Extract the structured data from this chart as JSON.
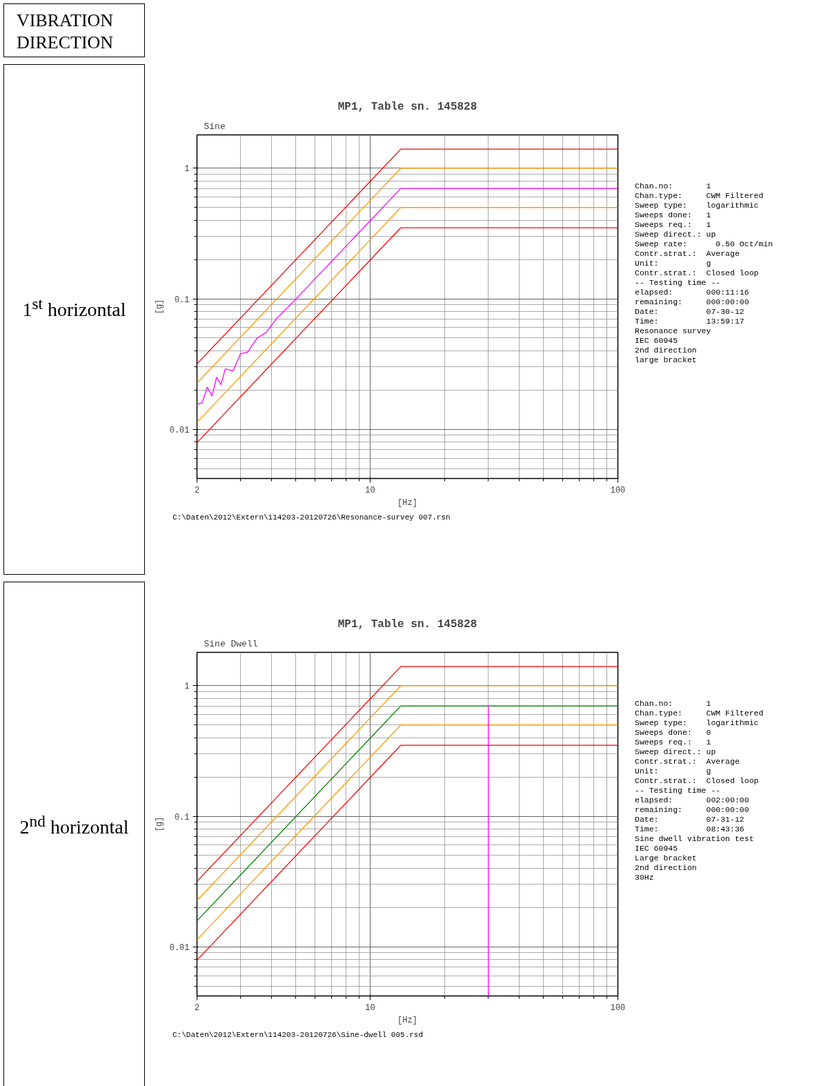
{
  "chart_data": [
    {
      "type": "line",
      "title": "MP1, Table sn. 145828",
      "subtitle": "Sine",
      "xlabel": "[Hz]",
      "ylabel": "[g]",
      "log": "xy",
      "xlim": [
        2,
        100
      ],
      "ylim": [
        0.0042,
        1.8
      ],
      "xticks": [
        2,
        10,
        100
      ],
      "yticks": [
        0.01,
        0.1,
        1
      ],
      "grid": true,
      "marker": "none",
      "line_style": "solid",
      "series": [
        {
          "color": "#ff0000",
          "x": [
            2,
            13.3,
            100
          ],
          "values": [
            0.0317,
            1.4,
            1.4
          ]
        },
        {
          "color": "#ff9900",
          "x": [
            2,
            13.3,
            100
          ],
          "values": [
            0.0226,
            1.0,
            1.0
          ]
        },
        {
          "color": "#ff9900",
          "x": [
            2,
            13.3,
            100
          ],
          "values": [
            0.0113,
            0.5,
            0.5
          ]
        },
        {
          "color": "#ff0000",
          "x": [
            2,
            13.3,
            100
          ],
          "values": [
            0.0079,
            0.35,
            0.35
          ]
        },
        {
          "color": "#ff00ff",
          "x": [
            2,
            2.1,
            2.2,
            2.3,
            2.4,
            2.5,
            2.6,
            2.8,
            3.0,
            3.2,
            3.5,
            3.8,
            4.2,
            5,
            13.3,
            100
          ],
          "values": [
            0.0155,
            0.016,
            0.021,
            0.018,
            0.025,
            0.022,
            0.029,
            0.028,
            0.038,
            0.039,
            0.05,
            0.055,
            0.071,
            0.099,
            0.7,
            0.7
          ]
        }
      ],
      "annotations": [
        "VIBRATION DIRECTION",
        "1$^{st}$ horizontal",
        "C:\\Daten\\2012\\Extern\\114203-20120726\\Resonance-survey 007.rsn",
        "Chan.no:       1",
        "Chan.type:     CWM Filtered",
        "Sweep type:    logarithmic",
        "Sweeps done:   1",
        "Sweeps req.:   1",
        "Sweep direct.: up",
        "Sweep rate:      0.50 Oct/min",
        "Contr.strat.:  Average",
        "Unit:          g",
        "Contr.strat.:  Closed loop",
        "-- Testing time --",
        "elapsed:       000:11:16",
        "remaining:     000:00:00",
        "Date:          07-30-12",
        "Time:          13:59:17",
        "Resonance survey",
        "IEC 60945",
        "2nd direction",
        "large bracket"
      ]
    },
    {
      "type": "line",
      "title": "MP1, Table sn. 145828",
      "subtitle": "Sine Dwell",
      "xlabel": "[Hz]",
      "ylabel": "[g]",
      "log": "xy",
      "xlim": [
        2,
        100
      ],
      "ylim": [
        0.0042,
        1.8
      ],
      "xticks": [
        2,
        10,
        100
      ],
      "yticks": [
        0.01,
        0.1,
        1
      ],
      "grid": true,
      "marker": "none",
      "line_style": "solid",
      "series": [
        {
          "color": "#ff0000",
          "x": [
            2,
            13.3,
            100
          ],
          "values": [
            0.0317,
            1.4,
            1.4
          ]
        },
        {
          "color": "#ff9900",
          "x": [
            2,
            13.3,
            100
          ],
          "values": [
            0.0226,
            1.0,
            1.0
          ]
        },
        {
          "color": "#008000",
          "x": [
            2,
            13.3,
            100
          ],
          "values": [
            0.0158,
            0.7,
            0.7
          ]
        },
        {
          "color": "#ff9900",
          "x": [
            2,
            13.3,
            100
          ],
          "values": [
            0.0113,
            0.5,
            0.5
          ]
        },
        {
          "color": "#ff0000",
          "x": [
            2,
            13.3,
            100
          ],
          "values": [
            0.0079,
            0.35,
            0.35
          ]
        },
        {
          "color": "#ff00ff",
          "x": [
            30,
            30
          ],
          "values": [
            0.0042,
            0.7
          ]
        }
      ],
      "annotations": [
        "2$^{nd}$ horizontal",
        "C:\\Daten\\2012\\Extern\\114203-20120726\\Sine-dwell 005.rsd",
        "Chan.no:       1",
        "Chan.type:     CWM Filtered",
        "Sweep type:    logarithmic",
        "Sweeps done:   0",
        "Sweeps req.:   1",
        "Sweep direct.: up",
        "Contr.strat.:  Average",
        "Unit:          g",
        "Contr.strat.:  Closed loop",
        "-- Testing time --",
        "elapsed:       002:00:00",
        "remaining:     000:00:00",
        "Date:          07-31-12",
        "Time:          08:43:36",
        "Sine dwell vibration test",
        "IEC 60945",
        "Large bracket",
        "2nd direction",
        "30Hz"
      ]
    }
  ]
}
